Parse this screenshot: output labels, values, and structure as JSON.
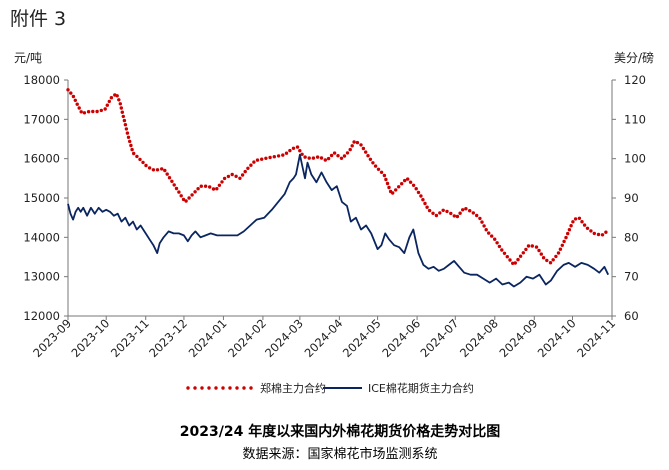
{
  "header": {
    "attachment": "附件 3"
  },
  "chart_data": {
    "type": "line",
    "title": "2023/24 年度以来国内外棉花期货价格走势对比图",
    "source": "数据来源：国家棉花市场监测系统",
    "left_unit": "元/吨",
    "right_unit": "美分/磅",
    "left_ylim": [
      12000,
      18000
    ],
    "right_ylim": [
      60,
      120
    ],
    "left_ticks": [
      "18000",
      "17000",
      "16000",
      "15000",
      "14000",
      "13000",
      "12000"
    ],
    "right_ticks": [
      "120",
      "110",
      "100",
      "90",
      "80",
      "70",
      "60"
    ],
    "x_range": [
      "2023-09-01",
      "2024-11-01"
    ],
    "x_ticks": [
      "2023-09",
      "2023-10",
      "2023-11",
      "2023-12",
      "2024-01",
      "2024-02",
      "2024-03",
      "2024-04",
      "2024-05",
      "2024-06",
      "2024-07",
      "2024-08",
      "2024-09",
      "2024-10",
      "2024-11"
    ],
    "grid": false,
    "legend_position": "bottom",
    "series": [
      {
        "name": "郑棉主力合约",
        "axis": "left",
        "color": "#cc0000",
        "style": "dotted",
        "points": [
          [
            "2023-09-01",
            17750
          ],
          [
            "2023-09-05",
            17600
          ],
          [
            "2023-09-08",
            17400
          ],
          [
            "2023-09-12",
            17150
          ],
          [
            "2023-09-18",
            17200
          ],
          [
            "2023-09-24",
            17200
          ],
          [
            "2023-09-30",
            17250
          ],
          [
            "2023-10-05",
            17550
          ],
          [
            "2023-10-09",
            17650
          ],
          [
            "2023-10-12",
            17400
          ],
          [
            "2023-10-15",
            17000
          ],
          [
            "2023-10-18",
            16600
          ],
          [
            "2023-10-22",
            16150
          ],
          [
            "2023-10-27",
            16000
          ],
          [
            "2023-11-02",
            15800
          ],
          [
            "2023-11-08",
            15700
          ],
          [
            "2023-11-15",
            15750
          ],
          [
            "2023-11-20",
            15500
          ],
          [
            "2023-11-26",
            15200
          ],
          [
            "2023-12-02",
            14900
          ],
          [
            "2023-12-08",
            15100
          ],
          [
            "2023-12-14",
            15300
          ],
          [
            "2023-12-20",
            15300
          ],
          [
            "2023-12-26",
            15200
          ],
          [
            "2024-01-02",
            15500
          ],
          [
            "2024-01-08",
            15600
          ],
          [
            "2024-01-14",
            15500
          ],
          [
            "2024-01-20",
            15750
          ],
          [
            "2024-01-26",
            15950
          ],
          [
            "2024-02-02",
            16000
          ],
          [
            "2024-02-10",
            16050
          ],
          [
            "2024-02-18",
            16100
          ],
          [
            "2024-02-24",
            16250
          ],
          [
            "2024-02-28",
            16300
          ],
          [
            "2024-03-04",
            16050
          ],
          [
            "2024-03-10",
            16000
          ],
          [
            "2024-03-16",
            16050
          ],
          [
            "2024-03-22",
            15950
          ],
          [
            "2024-03-28",
            16150
          ],
          [
            "2024-04-03",
            16000
          ],
          [
            "2024-04-09",
            16200
          ],
          [
            "2024-04-13",
            16450
          ],
          [
            "2024-04-18",
            16350
          ],
          [
            "2024-04-22",
            16150
          ],
          [
            "2024-04-26",
            15950
          ],
          [
            "2024-05-01",
            15750
          ],
          [
            "2024-05-06",
            15600
          ],
          [
            "2024-05-12",
            15100
          ],
          [
            "2024-05-18",
            15300
          ],
          [
            "2024-05-24",
            15500
          ],
          [
            "2024-05-30",
            15300
          ],
          [
            "2024-06-04",
            15050
          ],
          [
            "2024-06-10",
            14700
          ],
          [
            "2024-06-16",
            14550
          ],
          [
            "2024-06-22",
            14700
          ],
          [
            "2024-06-28",
            14600
          ],
          [
            "2024-07-02",
            14500
          ],
          [
            "2024-07-08",
            14750
          ],
          [
            "2024-07-14",
            14650
          ],
          [
            "2024-07-20",
            14500
          ],
          [
            "2024-07-26",
            14150
          ],
          [
            "2024-08-01",
            13950
          ],
          [
            "2024-08-06",
            13700
          ],
          [
            "2024-08-11",
            13500
          ],
          [
            "2024-08-16",
            13300
          ],
          [
            "2024-08-22",
            13550
          ],
          [
            "2024-08-28",
            13800
          ],
          [
            "2024-09-03",
            13750
          ],
          [
            "2024-09-09",
            13450
          ],
          [
            "2024-09-14",
            13350
          ],
          [
            "2024-09-20",
            13600
          ],
          [
            "2024-09-26",
            14000
          ],
          [
            "2024-10-02",
            14450
          ],
          [
            "2024-10-06",
            14500
          ],
          [
            "2024-10-12",
            14250
          ],
          [
            "2024-10-18",
            14100
          ],
          [
            "2024-10-24",
            14050
          ],
          [
            "2024-10-28",
            14150
          ]
        ]
      },
      {
        "name": "ICE棉花期货主力合约",
        "axis": "right",
        "color": "#0a2560",
        "style": "solid",
        "points": [
          [
            "2023-09-01",
            88.5
          ],
          [
            "2023-09-03",
            86
          ],
          [
            "2023-09-05",
            84.5
          ],
          [
            "2023-09-07",
            86.5
          ],
          [
            "2023-09-09",
            87.5
          ],
          [
            "2023-09-11",
            86.5
          ],
          [
            "2023-09-13",
            87.5
          ],
          [
            "2023-09-16",
            85.5
          ],
          [
            "2023-09-19",
            87.5
          ],
          [
            "2023-09-22",
            86
          ],
          [
            "2023-09-25",
            87.5
          ],
          [
            "2023-09-28",
            86.5
          ],
          [
            "2023-10-01",
            87
          ],
          [
            "2023-10-04",
            86.5
          ],
          [
            "2023-10-07",
            85.5
          ],
          [
            "2023-10-10",
            86
          ],
          [
            "2023-10-13",
            84
          ],
          [
            "2023-10-16",
            85
          ],
          [
            "2023-10-19",
            83
          ],
          [
            "2023-10-22",
            84
          ],
          [
            "2023-10-25",
            82
          ],
          [
            "2023-10-28",
            83
          ],
          [
            "2023-11-01",
            81
          ],
          [
            "2023-11-04",
            79.5
          ],
          [
            "2023-11-07",
            78
          ],
          [
            "2023-11-10",
            76
          ],
          [
            "2023-11-12",
            78.5
          ],
          [
            "2023-11-15",
            80
          ],
          [
            "2023-11-19",
            81.5
          ],
          [
            "2023-11-23",
            81
          ],
          [
            "2023-11-27",
            81
          ],
          [
            "2023-12-01",
            80.5
          ],
          [
            "2023-12-04",
            79
          ],
          [
            "2023-12-07",
            80.5
          ],
          [
            "2023-12-10",
            81.5
          ],
          [
            "2023-12-14",
            80
          ],
          [
            "2023-12-18",
            80.5
          ],
          [
            "2023-12-22",
            81
          ],
          [
            "2023-12-27",
            80.5
          ],
          [
            "2024-01-02",
            80.5
          ],
          [
            "2024-01-07",
            80.5
          ],
          [
            "2024-01-12",
            80.5
          ],
          [
            "2024-01-17",
            81.5
          ],
          [
            "2024-01-22",
            83
          ],
          [
            "2024-01-27",
            84.5
          ],
          [
            "2024-02-02",
            85
          ],
          [
            "2024-02-08",
            87
          ],
          [
            "2024-02-13",
            89
          ],
          [
            "2024-02-18",
            91
          ],
          [
            "2024-02-22",
            94
          ],
          [
            "2024-02-25",
            95
          ],
          [
            "2024-02-27",
            96
          ],
          [
            "2024-03-01",
            101
          ],
          [
            "2024-03-03",
            98
          ],
          [
            "2024-03-05",
            95
          ],
          [
            "2024-03-07",
            99
          ],
          [
            "2024-03-10",
            96
          ],
          [
            "2024-03-14",
            94
          ],
          [
            "2024-03-18",
            96.5
          ],
          [
            "2024-03-22",
            94
          ],
          [
            "2024-03-26",
            92
          ],
          [
            "2024-03-30",
            93
          ],
          [
            "2024-04-03",
            89
          ],
          [
            "2024-04-07",
            88
          ],
          [
            "2024-04-10",
            84
          ],
          [
            "2024-04-14",
            85
          ],
          [
            "2024-04-18",
            82
          ],
          [
            "2024-04-22",
            83
          ],
          [
            "2024-04-26",
            81
          ],
          [
            "2024-05-01",
            77
          ],
          [
            "2024-05-04",
            78
          ],
          [
            "2024-05-07",
            81
          ],
          [
            "2024-05-10",
            79.5
          ],
          [
            "2024-05-14",
            78
          ],
          [
            "2024-05-18",
            77.5
          ],
          [
            "2024-05-22",
            76
          ],
          [
            "2024-05-26",
            80
          ],
          [
            "2024-05-29",
            82
          ],
          [
            "2024-06-02",
            76
          ],
          [
            "2024-06-06",
            73
          ],
          [
            "2024-06-10",
            72
          ],
          [
            "2024-06-14",
            72.5
          ],
          [
            "2024-06-18",
            71.5
          ],
          [
            "2024-06-22",
            72
          ],
          [
            "2024-06-26",
            73
          ],
          [
            "2024-06-30",
            74
          ],
          [
            "2024-07-04",
            72.5
          ],
          [
            "2024-07-08",
            71
          ],
          [
            "2024-07-13",
            70.5
          ],
          [
            "2024-07-18",
            70.5
          ],
          [
            "2024-07-23",
            69.5
          ],
          [
            "2024-07-28",
            68.5
          ],
          [
            "2024-08-02",
            69.5
          ],
          [
            "2024-08-07",
            68
          ],
          [
            "2024-08-12",
            68.5
          ],
          [
            "2024-08-16",
            67.5
          ],
          [
            "2024-08-21",
            68.5
          ],
          [
            "2024-08-26",
            70
          ],
          [
            "2024-08-31",
            69.5
          ],
          [
            "2024-09-05",
            70.5
          ],
          [
            "2024-09-10",
            68
          ],
          [
            "2024-09-14",
            69
          ],
          [
            "2024-09-19",
            71.5
          ],
          [
            "2024-09-24",
            73
          ],
          [
            "2024-09-28",
            73.5
          ],
          [
            "2024-10-03",
            72.5
          ],
          [
            "2024-10-08",
            73.5
          ],
          [
            "2024-10-13",
            73
          ],
          [
            "2024-10-18",
            72
          ],
          [
            "2024-10-22",
            71
          ],
          [
            "2024-10-26",
            72.5
          ],
          [
            "2024-10-29",
            70.5
          ]
        ]
      }
    ]
  }
}
